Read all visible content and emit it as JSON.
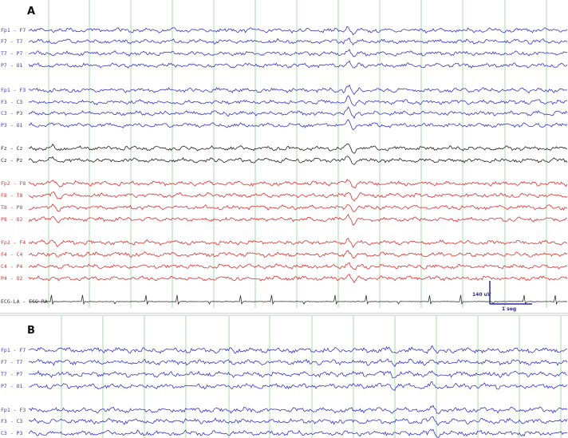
{
  "chart_data": [
    {
      "type": "line",
      "panel_label": "A",
      "gridlines_per_second": 1,
      "series": [
        {
          "name": "Fp1 - F7",
          "color": "#3535cc",
          "group": 0
        },
        {
          "name": "F7 - T7",
          "color": "#3535cc",
          "group": 0
        },
        {
          "name": "T7 - P7",
          "color": "#3535cc",
          "group": 0
        },
        {
          "name": "P7 - O1",
          "color": "#3535cc",
          "group": 0
        },
        {
          "name": "Fp1 - F3",
          "color": "#3535cc",
          "group": 1
        },
        {
          "name": "F3 - C3",
          "color": "#3535cc",
          "group": 1
        },
        {
          "name": "C3 - P3",
          "color": "#3535cc",
          "group": 1
        },
        {
          "name": "P3 - O1",
          "color": "#3535cc",
          "group": 1
        },
        {
          "name": "Fz - Cz",
          "color": "#1f1f1f",
          "group": 2
        },
        {
          "name": "Cz - Pz",
          "color": "#1f1f1f",
          "group": 2
        },
        {
          "name": "Fp2 - F8",
          "color": "#e03030",
          "group": 3
        },
        {
          "name": "F8 - T8",
          "color": "#e03030",
          "group": 3
        },
        {
          "name": "T8 - P8",
          "color": "#e03030",
          "group": 3
        },
        {
          "name": "P8 - O2",
          "color": "#e03030",
          "group": 3
        },
        {
          "name": "Fp2 - F4",
          "color": "#e03030",
          "group": 4
        },
        {
          "name": "F4 - C4",
          "color": "#e03030",
          "group": 4
        },
        {
          "name": "C4 - P4",
          "color": "#e03030",
          "group": 4
        },
        {
          "name": "P4 - O2",
          "color": "#e03030",
          "group": 4
        },
        {
          "name": "ECG-LA - ECG-RA",
          "color": "#333333",
          "group": 5
        }
      ],
      "scale_bar": {
        "amplitude_label": "140 uV",
        "time_label": "1 seg",
        "color": "#2a2a99"
      }
    },
    {
      "type": "line",
      "panel_label": "B",
      "gridlines_per_second": 1,
      "series": [
        {
          "name": "Fp1 - F7",
          "color": "#3535cc",
          "group": 0
        },
        {
          "name": "F7 - T7",
          "color": "#3535cc",
          "group": 0
        },
        {
          "name": "T7 - P7",
          "color": "#3535cc",
          "group": 0
        },
        {
          "name": "P7 - O1",
          "color": "#3535cc",
          "group": 0
        },
        {
          "name": "Fp1 - F3",
          "color": "#3535cc",
          "group": 1
        },
        {
          "name": "F3 - C3",
          "color": "#3535cc",
          "group": 1
        },
        {
          "name": "C3 - P3",
          "color": "#3535cc",
          "group": 1
        }
      ]
    }
  ],
  "colors": {
    "grid": "#a8d8a8",
    "background": "#ffffff"
  }
}
